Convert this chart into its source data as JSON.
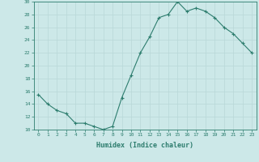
{
  "x": [
    0,
    1,
    2,
    3,
    4,
    5,
    6,
    7,
    8,
    9,
    10,
    11,
    12,
    13,
    14,
    15,
    16,
    17,
    18,
    19,
    20,
    21,
    22,
    23
  ],
  "y": [
    15.5,
    14.0,
    13.0,
    12.5,
    11.0,
    11.0,
    10.5,
    10.0,
    10.5,
    15.0,
    18.5,
    22.0,
    24.5,
    27.5,
    28.0,
    30.0,
    28.5,
    29.0,
    28.5,
    27.5,
    26.0,
    25.0,
    23.5,
    22.0
  ],
  "xlabel": "Humidex (Indice chaleur)",
  "ylim": [
    10,
    30
  ],
  "xlim": [
    -0.5,
    23.5
  ],
  "yticks": [
    10,
    12,
    14,
    16,
    18,
    20,
    22,
    24,
    26,
    28,
    30
  ],
  "xticks": [
    0,
    1,
    2,
    3,
    4,
    5,
    6,
    7,
    8,
    9,
    10,
    11,
    12,
    13,
    14,
    15,
    16,
    17,
    18,
    19,
    20,
    21,
    22,
    23
  ],
  "line_color": "#2d7d6e",
  "marker": "+",
  "bg_color": "#cce8e8",
  "grid_color": "#b8d8d8",
  "tick_color": "#2d7d6e",
  "label_color": "#2d7d6e",
  "axis_color": "#2d7d6e"
}
